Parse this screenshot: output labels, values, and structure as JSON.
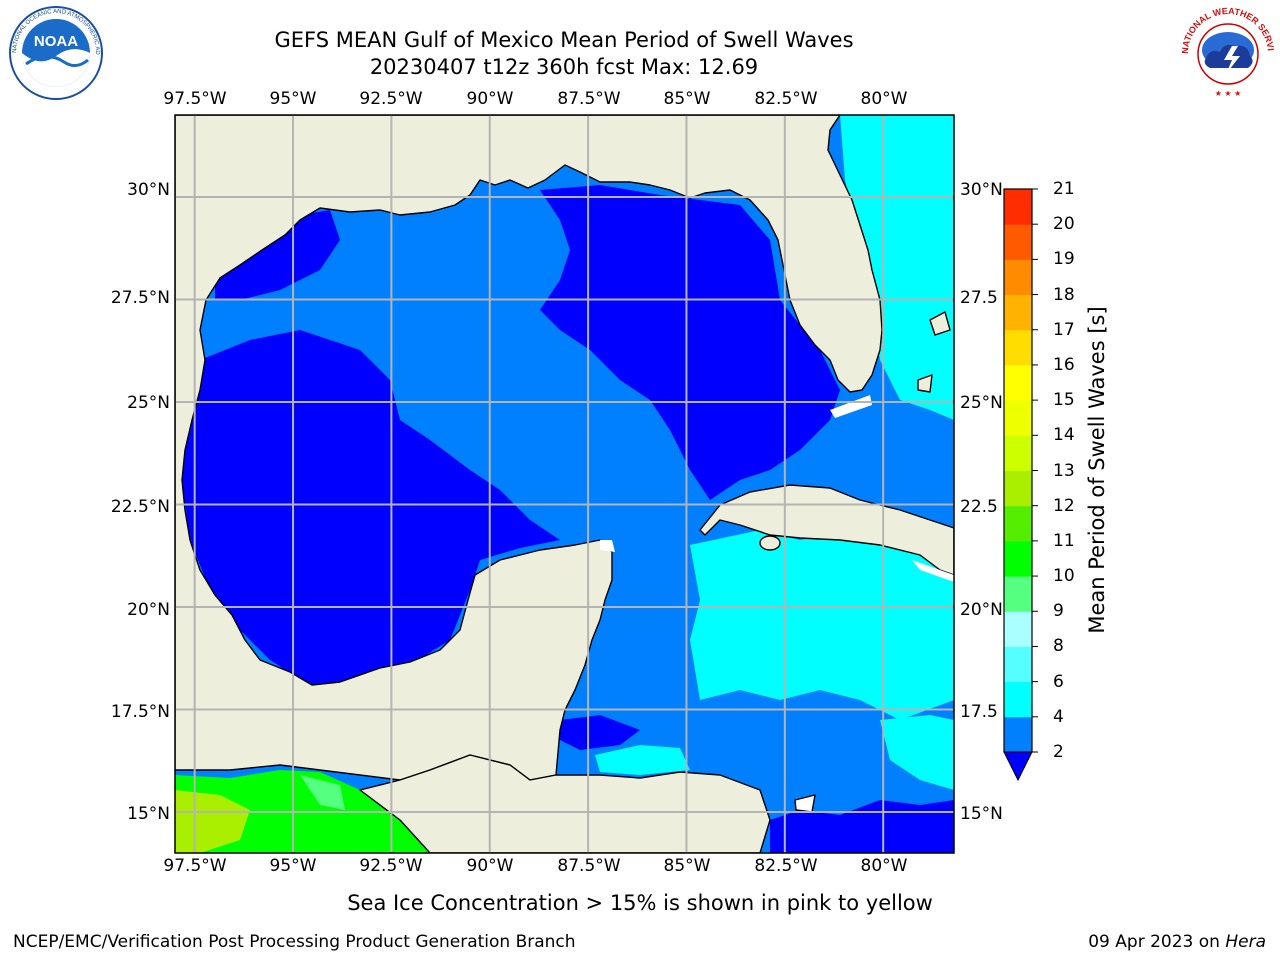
{
  "title": {
    "line1": "GEFS MEAN Gulf of Mexico Mean Period of Swell Waves",
    "line2": "20230407 t12z 360h fcst   Max: 12.69"
  },
  "logos": {
    "left": "noaa-logo",
    "right": "national-weather-service-logo",
    "left_text": "NATIONAL OCEANIC AND ATMOSPHERIC ADMINISTRATION · U.S. DEPARTMENT OF COMMERCE",
    "right_text": "NATIONAL WEATHER SERVICE"
  },
  "map": {
    "region": "Gulf of Mexico",
    "lon_range": [
      -98.0,
      -78.2
    ],
    "lat_range": [
      14.0,
      32.0
    ],
    "grid": true,
    "lon_ticks": [
      "97.5°W",
      "95°W",
      "92.5°W",
      "90°W",
      "87.5°W",
      "85°W",
      "82.5°W",
      "80°W"
    ],
    "lat_ticks": [
      "30°N",
      "27.5°N",
      "25°N",
      "22.5°N",
      "20°N",
      "17.5°N",
      "15°N"
    ],
    "lat_ticks_right": [
      "30°N",
      "27.5",
      "25°N",
      "22.5",
      "20°N",
      "17.5",
      "15°N"
    ],
    "colors": {
      "land": "#eeeedc",
      "coast": "#000000",
      "grid": "#b4b4b4",
      "period_0_2": "#0000ff",
      "period_2_4": "#007fff",
      "period_4_6": "#00ffff"
    }
  },
  "colorbar": {
    "label": "Mean Period of Swell Waves [s]",
    "levels": [
      2,
      4,
      6,
      8,
      9,
      10,
      11,
      12,
      13,
      14,
      15,
      16,
      17,
      18,
      19,
      20,
      21
    ],
    "tick_labels": [
      "2",
      "4",
      "6",
      "8",
      "9",
      "10",
      "11",
      "12",
      "13",
      "14",
      "15",
      "16",
      "17",
      "18",
      "19",
      "20",
      "21"
    ],
    "colors": [
      "#007fff",
      "#00ffff",
      "#55ffff",
      "#aaffff",
      "#55ff7f",
      "#00ff00",
      "#55ee00",
      "#aaee00",
      "#ccff00",
      "#eeff00",
      "#ffff00",
      "#ffdd00",
      "#ffb300",
      "#ff8c00",
      "#ff5a00",
      "#ff2d00"
    ],
    "extend_below_color": "#0000ff"
  },
  "note": "Sea Ice Concentration > 15% is shown in pink to yellow",
  "footer": {
    "left": "NCEP/EMC/Verification Post Processing Product Generation Branch",
    "right_date": "09 Apr 2023 on",
    "right_host": "Hera"
  }
}
